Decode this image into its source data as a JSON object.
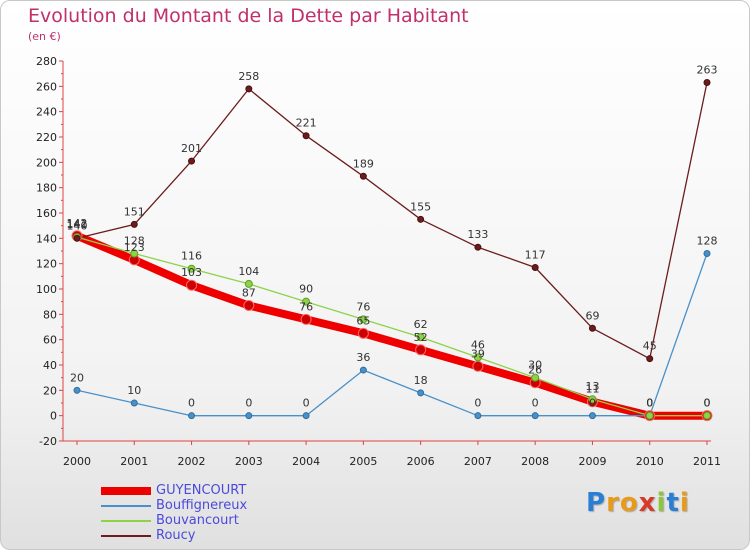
{
  "title": "Evolution du Montant de la Dette par Habitant",
  "subtitle": "(en €)",
  "logo": {
    "letters": [
      "P",
      "r",
      "o",
      "x",
      "i",
      "t",
      "i"
    ],
    "colors": [
      "#2a7fd4",
      "#e89a1a",
      "#e89a1a",
      "#d83a2a",
      "#8cc63e",
      "#2a7fd4",
      "#e89a1a"
    ]
  },
  "chart_data": {
    "type": "line",
    "title": "Evolution du Montant de la Dette par Habitant",
    "ylabel": "(en €)",
    "x": [
      "2000",
      "2001",
      "2002",
      "2003",
      "2004",
      "2005",
      "2006",
      "2007",
      "2008",
      "2009",
      "2010",
      "2011"
    ],
    "ylim": [
      -20,
      280
    ],
    "yticks": [
      -20,
      0,
      20,
      40,
      60,
      80,
      100,
      120,
      140,
      160,
      180,
      200,
      220,
      240,
      260,
      280
    ],
    "grid": false,
    "legend_position": "bottom-left",
    "series": [
      {
        "name": "GUYENCOURT",
        "color": "#ee0000",
        "values": [
          142,
          123,
          103,
          87,
          76,
          65,
          52,
          39,
          26,
          11,
          0,
          0
        ]
      },
      {
        "name": "Bouffignereux",
        "color": "#4a90c8",
        "values": [
          20,
          10,
          0,
          0,
          0,
          36,
          18,
          0,
          0,
          0,
          0,
          128
        ]
      },
      {
        "name": "Bouvancourt",
        "color": "#8ed24a",
        "values": [
          141,
          128,
          116,
          104,
          90,
          76,
          62,
          46,
          30,
          13,
          0,
          0
        ]
      },
      {
        "name": "Roucy",
        "color": "#6b1d1d",
        "values": [
          140,
          151,
          201,
          258,
          221,
          189,
          155,
          133,
          117,
          69,
          45,
          263
        ]
      }
    ]
  }
}
